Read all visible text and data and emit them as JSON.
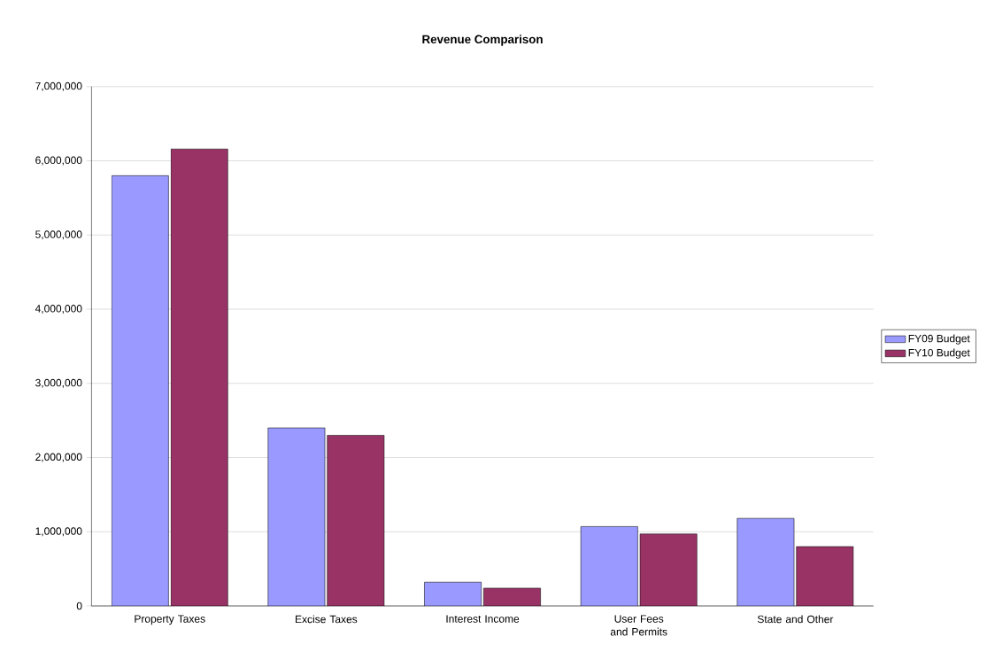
{
  "chart_data": {
    "type": "bar",
    "title": "Revenue Comparison",
    "categories": [
      "Property Taxes",
      "Excise Taxes",
      "Interest Income",
      "User Fees and Permits",
      "State and Other"
    ],
    "series": [
      {
        "name": "FY09 Budget",
        "color": "#9999ff",
        "values": [
          5800000,
          2400000,
          320000,
          1070000,
          1180000
        ]
      },
      {
        "name": "FY10 Budget",
        "color": "#993366",
        "values": [
          6160000,
          2300000,
          240000,
          970000,
          800000
        ]
      }
    ],
    "ylim": [
      0,
      7000000
    ],
    "yticks": [
      {
        "value": 0,
        "label": "0"
      },
      {
        "value": 1000000,
        "label": "1,000,000"
      },
      {
        "value": 2000000,
        "label": "2,000,000"
      },
      {
        "value": 3000000,
        "label": "3,000,000"
      },
      {
        "value": 4000000,
        "label": "4,000,000"
      },
      {
        "value": 5000000,
        "label": "5,000,000"
      },
      {
        "value": 6000000,
        "label": "6,000,000"
      },
      {
        "value": 7000000,
        "label": "7,000,000"
      }
    ],
    "grid": "y",
    "legend": "right"
  }
}
